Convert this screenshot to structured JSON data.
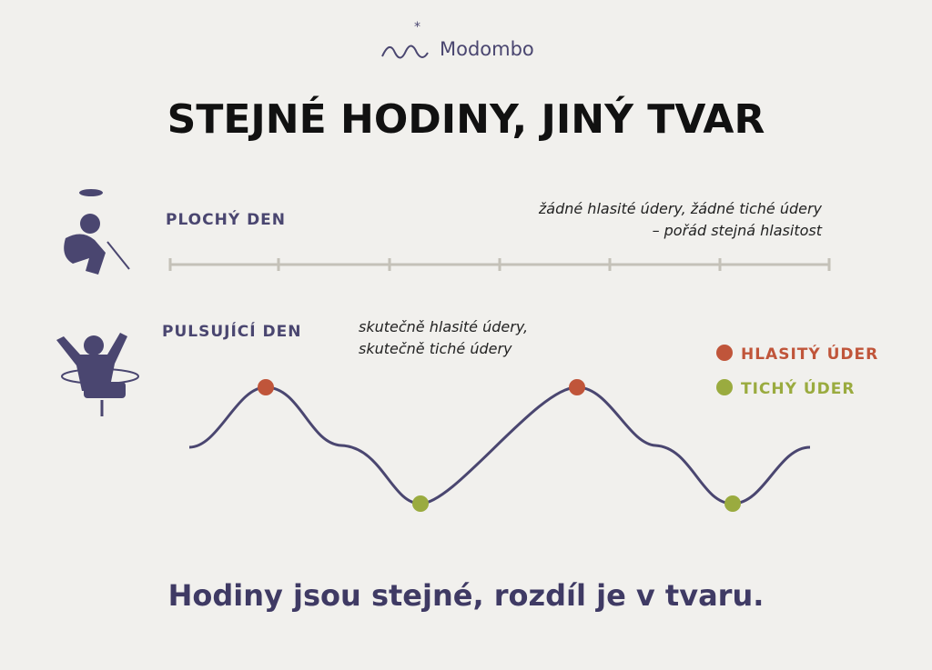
{
  "brand": "Modombo",
  "title": "STEJNÉ HODINY, JINÝ TVAR",
  "flat": {
    "label": "PLOCHÝ DEN",
    "note": [
      "žádné hlasité údery, žádné tiché údery",
      "– pořád stejná hlasitost"
    ]
  },
  "pulse": {
    "label": "PULSUJÍCÍ DEN",
    "note": [
      "skutečně hlasité údery,",
      "skutečně tiché údery"
    ]
  },
  "legend": [
    "HLASITÝ ÚDER",
    "TICHÝ ÚDER"
  ],
  "footer": "Hodiny jsou stejné, rozdíl je v tvaru."
}
